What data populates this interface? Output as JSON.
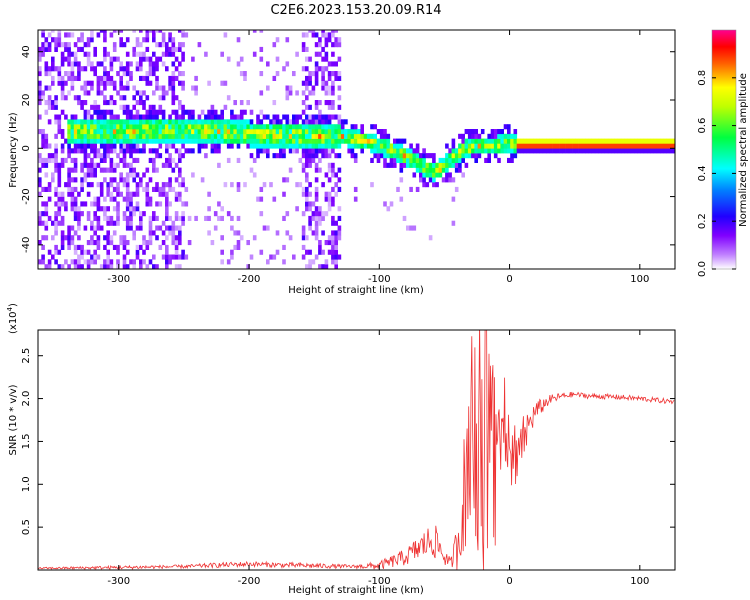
{
  "figure_title": "C2E6.2023.153.20.09.R14",
  "chart_data": [
    {
      "type": "heatmap",
      "title": "C2E6.2023.153.20.09.R14",
      "xlabel": "Height of straight line (km)",
      "ylabel": "Frequency (Hz)",
      "xlim": [
        -362,
        127
      ],
      "ylim": [
        -50,
        49
      ],
      "x_ticks": [
        -300,
        -200,
        -100,
        0,
        100
      ],
      "y_ticks": [
        -40,
        -20,
        0,
        20,
        40
      ],
      "colorbar": {
        "label": "Normalized spectral amplitude",
        "range": [
          0,
          1
        ],
        "ticks": [
          "0.0",
          "0.2",
          "0.4",
          "0.6",
          "0.8"
        ],
        "colors": [
          "#ffffff",
          "#8000ff",
          "#0000ff",
          "#00ffff",
          "#00ff00",
          "#ffff00",
          "#ff0000",
          "#ff00a0"
        ]
      },
      "ridge": {
        "description": "dominant frequency trace versus height",
        "x": [
          -330,
          -300,
          -250,
          -200,
          -150,
          -130,
          -110,
          -90,
          -75,
          -60,
          -53,
          -45,
          -35,
          -25,
          -15,
          -5,
          0,
          5,
          127
        ],
        "y": [
          6,
          6,
          7,
          5,
          4,
          4,
          2,
          -2,
          -6,
          -11,
          -9,
          -5,
          -1,
          0,
          0,
          1,
          1,
          0.5,
          0.5
        ],
        "peak_amplitude_start_x": 5
      },
      "noise_bands_x": [
        [
          -362,
          -250
        ],
        [
          -160,
          -130
        ]
      ]
    },
    {
      "type": "line",
      "xlabel": "Height of straight line (km)",
      "ylabel": "SNR (10 * v/v)",
      "y_multiplier": "(x10",
      "y_multiplier_exp": "4",
      "y_multiplier_close": ")",
      "xlim": [
        -362,
        127
      ],
      "ylim": [
        0,
        2.8
      ],
      "x_ticks": [
        -300,
        -200,
        -100,
        0,
        100
      ],
      "y_ticks": [
        "0.5",
        "1.0",
        "1.5",
        "2.0",
        "2.5"
      ],
      "series": [
        {
          "name": "SNR",
          "color": "#ee3333",
          "x": [
            -362,
            -300,
            -250,
            -220,
            -200,
            -180,
            -150,
            -120,
            -100,
            -80,
            -70,
            -60,
            -55,
            -50,
            -45,
            -40,
            -35,
            -30,
            -25,
            -20,
            -15,
            -10,
            -5,
            0,
            5,
            10,
            15,
            20,
            30,
            40,
            50,
            60,
            80,
            100,
            127
          ],
          "y": [
            0.02,
            0.03,
            0.04,
            0.06,
            0.07,
            0.06,
            0.05,
            0.04,
            0.05,
            0.15,
            0.25,
            0.35,
            0.3,
            0.15,
            0.08,
            0.3,
            0.9,
            1.2,
            1.4,
            1.0,
            1.5,
            1.1,
            1.3,
            1.2,
            1.4,
            1.5,
            1.7,
            1.85,
            1.98,
            2.03,
            2.05,
            2.03,
            2.02,
            2.0,
            1.96
          ],
          "noise_amplitude": [
            0.01,
            0.02,
            0.02,
            0.03,
            0.03,
            0.03,
            0.03,
            0.02,
            0.05,
            0.1,
            0.15,
            0.2,
            0.2,
            0.1,
            0.05,
            0.3,
            0.7,
            0.9,
            1.1,
            1.2,
            1.3,
            0.8,
            0.7,
            0.6,
            0.4,
            0.3,
            0.2,
            0.12,
            0.06,
            0.04,
            0.03,
            0.03,
            0.03,
            0.03,
            0.03
          ]
        }
      ]
    }
  ]
}
